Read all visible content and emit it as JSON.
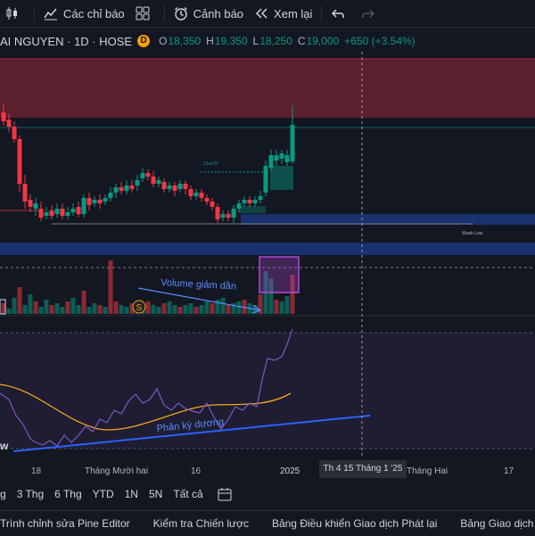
{
  "toolbar": {
    "indicators_label": "Các chỉ báo",
    "alerts_label": "Cảnh báo",
    "replay_label": "Xem lại"
  },
  "legend": {
    "symbol": "AI NGUYEN · 1D · HOSE",
    "badge": "D",
    "o_label": "O",
    "o": "18,350",
    "h_label": "H",
    "h": "19,350",
    "l_label": "L",
    "l": "18,250",
    "c_label": "C",
    "c": "19,000",
    "change": "+650 (+3.54%)"
  },
  "annotations": {
    "choch": "ChoCH",
    "weak_low": "Weak Low",
    "volume_note": "Volume giảm dần",
    "divergence_note": "Phân kỳ dương",
    "earnings_badge": "S",
    "left_marker": "w"
  },
  "time_axis": {
    "ticks": [
      "18",
      "Tháng Mười hai",
      "16",
      "2025",
      "Tháng Hai",
      "17"
    ],
    "crosshair_label": "Th 4 15 Tháng 1 '25"
  },
  "ranges": [
    "g",
    "3 Thg",
    "6 Thg",
    "YTD",
    "1N",
    "5N",
    "Tất cả"
  ],
  "bottom_tabs": [
    "Trình chỉnh sửa Pine Editor",
    "Kiểm tra Chiến lược",
    "Bảng Điều khiển Giao dịch Phát lại",
    "Bảng Giao dịch"
  ],
  "colors": {
    "background": "#131722",
    "up": "#089981",
    "down": "#f23645",
    "supply_zone": "#f23645",
    "demand_zone": "#2962ff",
    "rsi_line": "#7e57c2",
    "rsi_ma": "#f5a623",
    "annotation": "#2962ff",
    "volume_box": "#b24ad6"
  }
}
